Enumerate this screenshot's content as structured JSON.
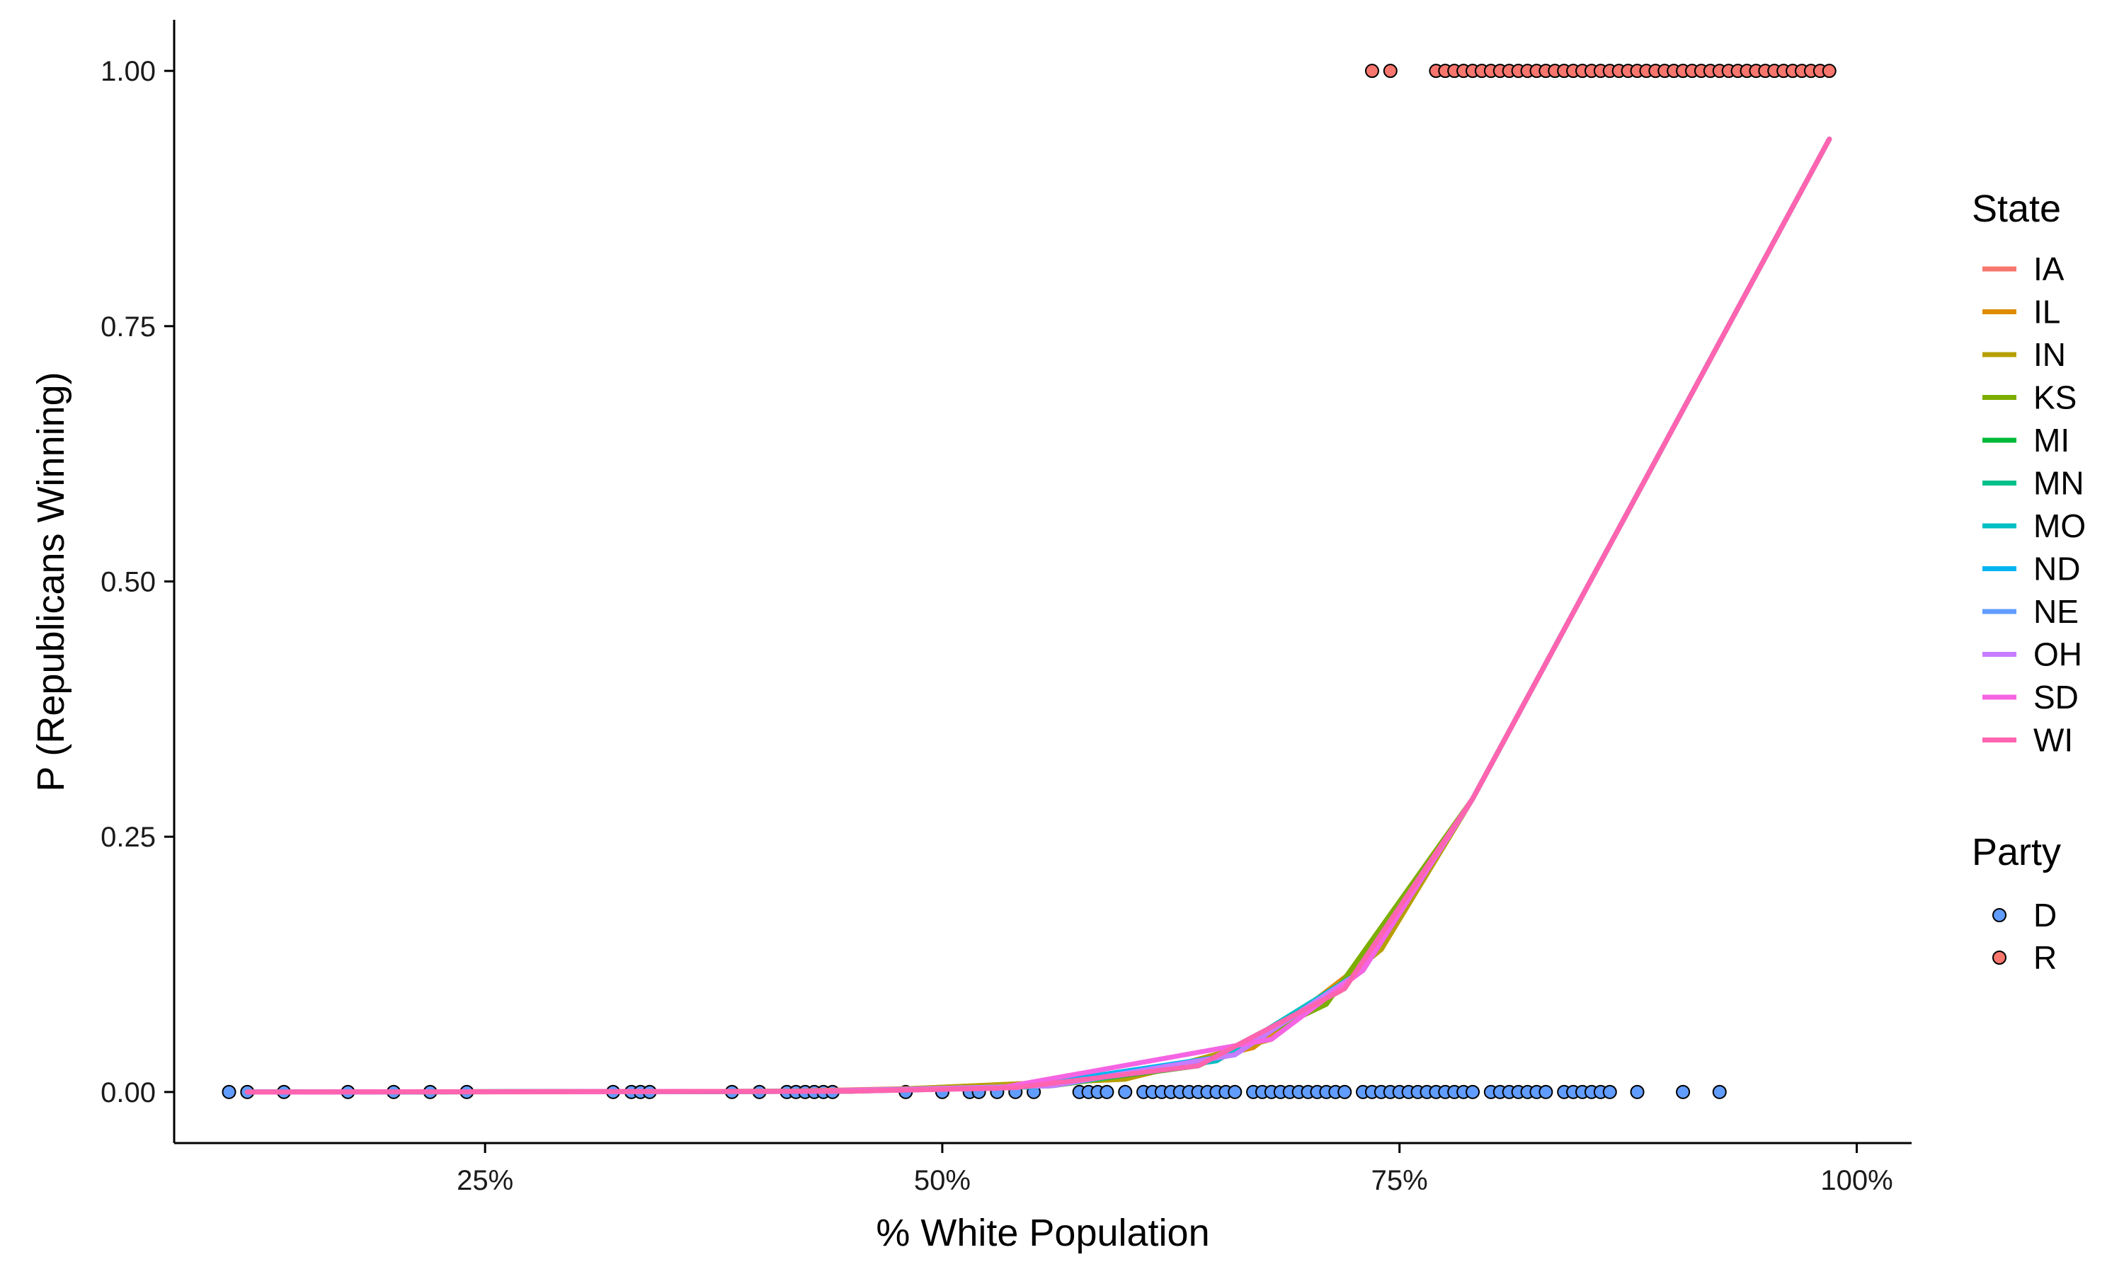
{
  "chart_data": {
    "type": "line",
    "xlabel": "% White Population",
    "ylabel": "P (Republicans Winning)",
    "xlim": [
      0.08,
      1.03
    ],
    "ylim": [
      -0.05,
      1.05
    ],
    "x_ticks": [
      0.25,
      0.5,
      0.75,
      1.0
    ],
    "x_tick_labels": [
      "25%",
      "50%",
      "75%",
      "100%"
    ],
    "y_ticks": [
      0,
      0.25,
      0.5,
      0.75,
      1.0
    ],
    "y_tick_labels": [
      "0.00",
      "0.25",
      "0.50",
      "0.75",
      "1.00"
    ],
    "grid": false,
    "legend_placement": "right",
    "legend_title_state": "State",
    "legend_title_party": "Party",
    "curve_model": {
      "logistic_midpoint": 0.84,
      "logistic_scale": 0.055
    },
    "series": [
      {
        "name": "IA",
        "color": "#F8766D",
        "x": [
          0.12,
          0.4,
          0.56,
          0.65,
          0.72,
          0.79,
          0.985
        ]
      },
      {
        "name": "IL",
        "color": "#DE8C00",
        "x": [
          0.12,
          0.45,
          0.6,
          0.67,
          0.74,
          0.79,
          0.985
        ]
      },
      {
        "name": "IN",
        "color": "#B79F00",
        "x": [
          0.12,
          0.45,
          0.6,
          0.68,
          0.74,
          0.79,
          0.985
        ]
      },
      {
        "name": "KS",
        "color": "#7CAE00",
        "x": [
          0.12,
          0.45,
          0.56,
          0.64,
          0.71,
          0.79,
          0.985
        ]
      },
      {
        "name": "MI",
        "color": "#00BA38",
        "x": [
          0.12,
          0.43,
          0.55,
          0.64,
          0.72,
          0.79,
          0.985
        ]
      },
      {
        "name": "MN",
        "color": "#00C08B",
        "x": [
          0.12,
          0.44,
          0.56,
          0.65,
          0.73,
          0.79,
          0.985
        ]
      },
      {
        "name": "MO",
        "color": "#00BFC4",
        "x": [
          0.12,
          0.44,
          0.55,
          0.65,
          0.73,
          0.79,
          0.985
        ]
      },
      {
        "name": "ND",
        "color": "#00B4F0",
        "x": [
          0.12,
          0.45,
          0.54,
          0.66,
          0.73,
          0.79,
          0.985
        ]
      },
      {
        "name": "NE",
        "color": "#619CFF",
        "x": [
          0.12,
          0.44,
          0.56,
          0.66,
          0.73,
          0.79,
          0.985
        ]
      },
      {
        "name": "OH",
        "color": "#C77CFF",
        "x": [
          0.12,
          0.43,
          0.56,
          0.66,
          0.73,
          0.79,
          0.985
        ]
      },
      {
        "name": "SD",
        "color": "#F564E3",
        "x": [
          0.12,
          0.44,
          0.53,
          0.68,
          0.73,
          0.79,
          0.985
        ]
      },
      {
        "name": "WI",
        "color": "#FF64B0",
        "x": [
          0.12,
          0.45,
          0.54,
          0.64,
          0.72,
          0.79,
          0.985
        ]
      }
    ],
    "points": [
      {
        "name": "D",
        "color": "#619CFF",
        "y": 0,
        "x": [
          0.11,
          0.12,
          0.14,
          0.175,
          0.2,
          0.22,
          0.24,
          0.32,
          0.33,
          0.335,
          0.34,
          0.385,
          0.4,
          0.415,
          0.42,
          0.425,
          0.43,
          0.435,
          0.44,
          0.48,
          0.5,
          0.515,
          0.52,
          0.53,
          0.54,
          0.55,
          0.575,
          0.58,
          0.585,
          0.59,
          0.6,
          0.61,
          0.615,
          0.62,
          0.625,
          0.63,
          0.635,
          0.64,
          0.645,
          0.65,
          0.655,
          0.66,
          0.67,
          0.675,
          0.68,
          0.685,
          0.69,
          0.695,
          0.7,
          0.705,
          0.71,
          0.715,
          0.72,
          0.73,
          0.735,
          0.74,
          0.745,
          0.75,
          0.755,
          0.76,
          0.765,
          0.77,
          0.775,
          0.78,
          0.785,
          0.79,
          0.8,
          0.805,
          0.81,
          0.815,
          0.82,
          0.825,
          0.83,
          0.84,
          0.845,
          0.85,
          0.855,
          0.86,
          0.865,
          0.88,
          0.905,
          0.925
        ]
      },
      {
        "name": "R",
        "color": "#F8766D",
        "y": 1,
        "x": [
          0.735,
          0.745,
          0.77,
          0.775,
          0.78,
          0.785,
          0.79,
          0.795,
          0.8,
          0.805,
          0.81,
          0.815,
          0.82,
          0.825,
          0.83,
          0.835,
          0.84,
          0.845,
          0.85,
          0.855,
          0.86,
          0.865,
          0.87,
          0.875,
          0.88,
          0.885,
          0.89,
          0.895,
          0.9,
          0.905,
          0.91,
          0.915,
          0.92,
          0.925,
          0.93,
          0.935,
          0.94,
          0.945,
          0.95,
          0.955,
          0.96,
          0.965,
          0.97,
          0.975,
          0.98,
          0.985
        ]
      }
    ]
  }
}
